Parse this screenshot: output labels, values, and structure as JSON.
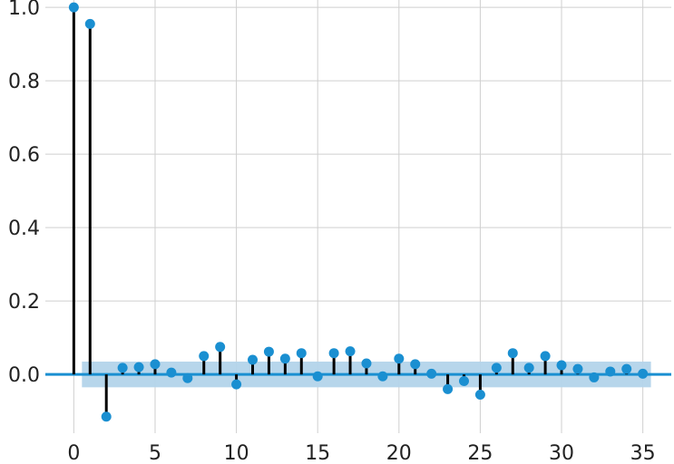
{
  "chart_data": {
    "type": "stem",
    "title": "",
    "xlabel": "",
    "ylabel": "",
    "xlim": [
      -1.75,
      36.75
    ],
    "ylim": [
      -0.16,
      1.02
    ],
    "x_ticks": [
      0,
      5,
      10,
      15,
      20,
      25,
      30,
      35
    ],
    "x_tick_labels": [
      "0",
      "5",
      "10",
      "15",
      "20",
      "25",
      "30",
      "35"
    ],
    "y_ticks": [
      0.0,
      0.2,
      0.4,
      0.6,
      0.8,
      1.0
    ],
    "y_tick_labels": [
      "0.0",
      "0.2",
      "0.4",
      "0.6",
      "0.8",
      "1.0"
    ],
    "grid": true,
    "lags": [
      0,
      1,
      2,
      3,
      4,
      5,
      6,
      7,
      8,
      9,
      10,
      11,
      12,
      13,
      14,
      15,
      16,
      17,
      18,
      19,
      20,
      21,
      22,
      23,
      24,
      25,
      26,
      27,
      28,
      29,
      30,
      31,
      32,
      33,
      34,
      35
    ],
    "values": [
      1.0,
      0.955,
      -0.115,
      0.018,
      0.02,
      0.028,
      0.005,
      -0.01,
      0.05,
      0.075,
      -0.027,
      0.04,
      0.062,
      0.043,
      0.058,
      -0.005,
      0.058,
      0.063,
      0.03,
      -0.005,
      0.043,
      0.028,
      0.002,
      -0.04,
      -0.018,
      -0.055,
      0.018,
      0.058,
      0.018,
      0.05,
      0.025,
      0.015,
      -0.008,
      0.008,
      0.015,
      0.002
    ],
    "confidence_band": {
      "x_start": 0.5,
      "x_end": 35.5,
      "lower": -0.035,
      "upper": 0.035
    },
    "colors": {
      "marker": "#1a8fd1",
      "stem": "#000000",
      "zero_line": "#1a8fd1",
      "band": "#b3d4ea",
      "grid": "#cfcfcf"
    }
  }
}
